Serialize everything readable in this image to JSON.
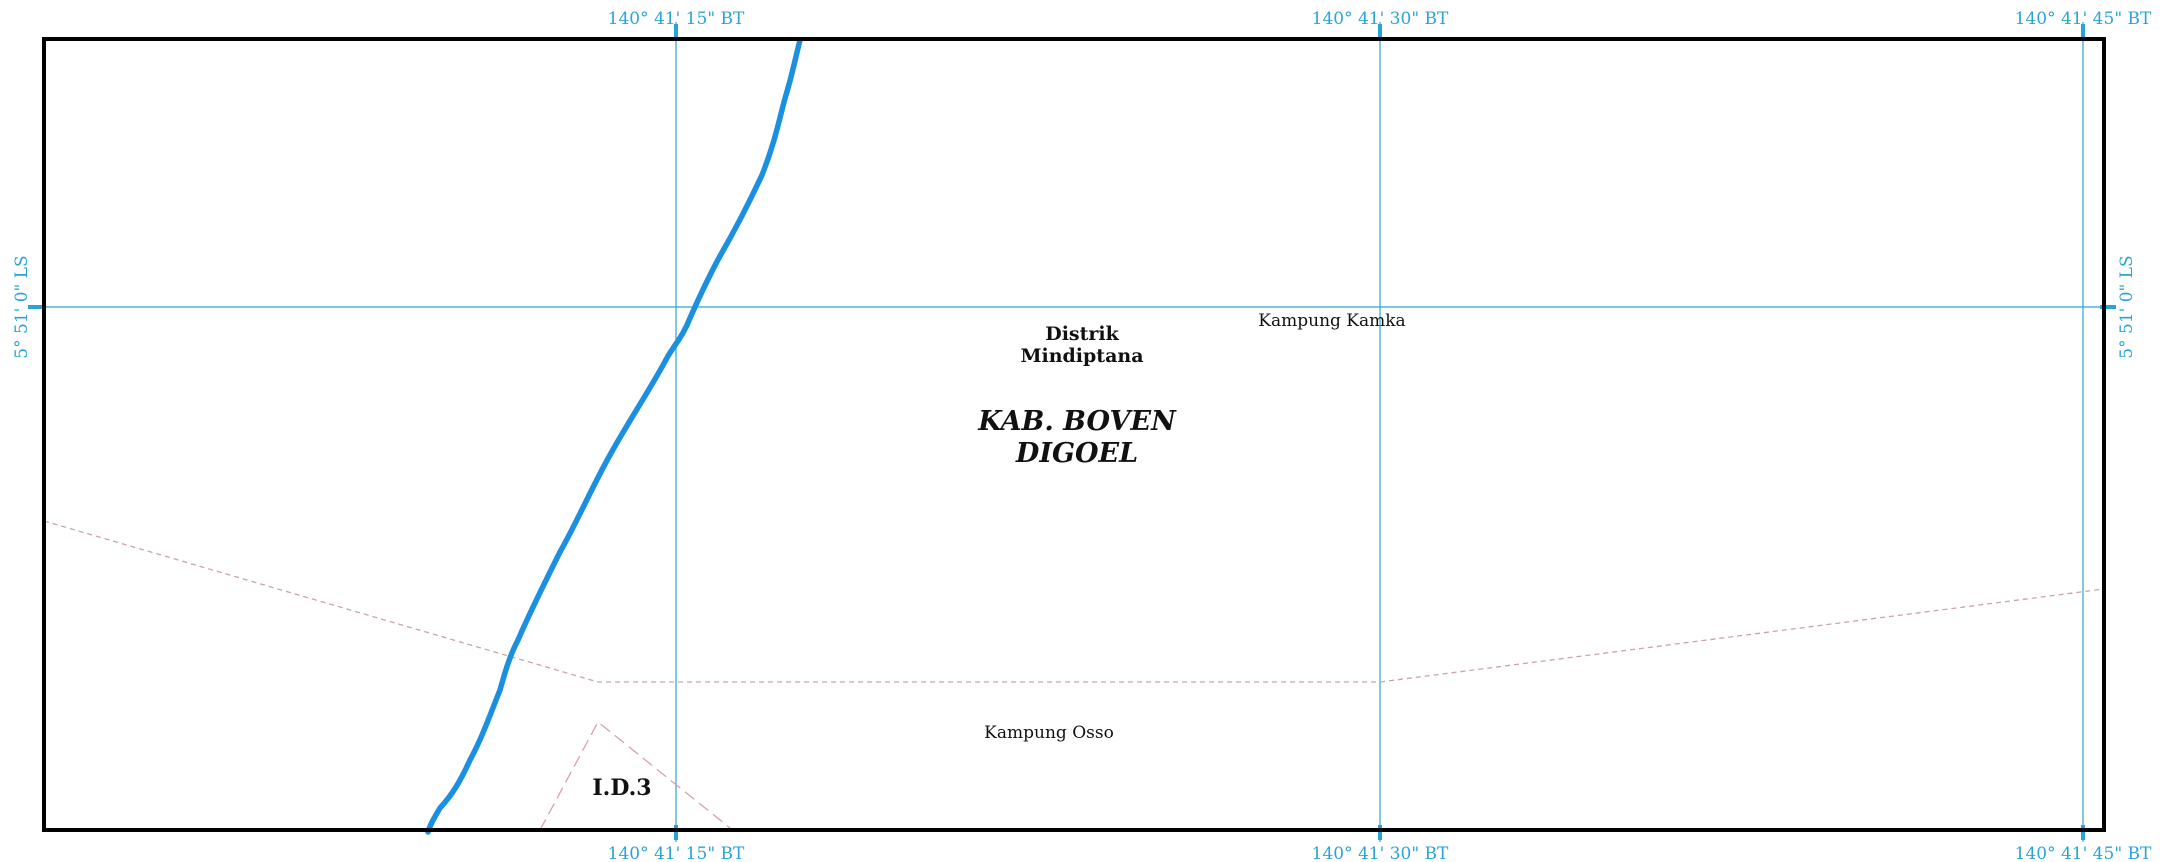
{
  "map": {
    "coords": {
      "lon_1": "140° 41' 15\" BT",
      "lon_2": "140° 41' 30\" BT",
      "lon_3": "140° 41' 45\" BT",
      "lat_1": "5° 51' 0\" LS"
    },
    "labels": {
      "district_line1": "Distrik",
      "district_line2": "Mindiptana",
      "regency_line1": "KAB. BOVEN",
      "regency_line2": "DIGOEL",
      "village_kamka": "Kampung Kamka",
      "village_osso": "Kampung Osso",
      "boundary_code": "I.D.3"
    },
    "colors": {
      "graticule": "#2aa4d6",
      "river": "#1b8fe0",
      "frame": "#000000",
      "boundary": "#c9a3ad"
    }
  }
}
